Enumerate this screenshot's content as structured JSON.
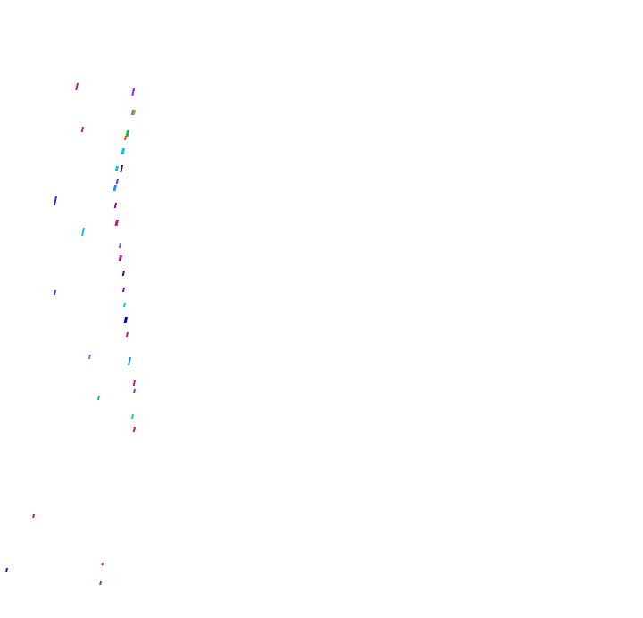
{
  "canvas": {
    "background": "#ffffff",
    "description_free": true
  },
  "strokes": [
    {
      "color": "#c0148c"
    },
    {
      "color": "#a020f0"
    },
    {
      "color": "#1e90ff"
    },
    {
      "color": "#ff8c00"
    },
    {
      "color": "#c0148c"
    },
    {
      "color": "#22b14c"
    },
    {
      "color": "#ff4500"
    },
    {
      "color": "#00bfff"
    },
    {
      "color": "#4b0082"
    },
    {
      "color": "#00ced1"
    },
    {
      "color": "#8a2be2"
    },
    {
      "color": "#1e90ff"
    },
    {
      "color": "#2e2eb8"
    },
    {
      "color": "#8b008b"
    },
    {
      "color": "#c0148c"
    },
    {
      "color": "#00bfff"
    },
    {
      "color": "#6a5acd"
    },
    {
      "color": "#c0148c"
    },
    {
      "color": "#4b0082"
    },
    {
      "color": "#9400d3"
    },
    {
      "color": "#00ced1"
    },
    {
      "color": "#0000cd"
    },
    {
      "color": "#c0148c"
    },
    {
      "color": "#3b3bdf"
    },
    {
      "color": "#7b68ee"
    },
    {
      "color": "#1e90ff"
    },
    {
      "color": "#c0148c"
    },
    {
      "color": "#9932cc"
    },
    {
      "color": "#00c853"
    },
    {
      "color": "#00e676"
    },
    {
      "color": "#c0148c"
    },
    {
      "color": "#c0148c"
    },
    {
      "color": "#1a1aa6"
    },
    {
      "color": "#c0148c"
    },
    {
      "color": "#9c27b0"
    },
    {
      "color": "#2196f3"
    },
    {
      "color": "#c0148c"
    }
  ]
}
